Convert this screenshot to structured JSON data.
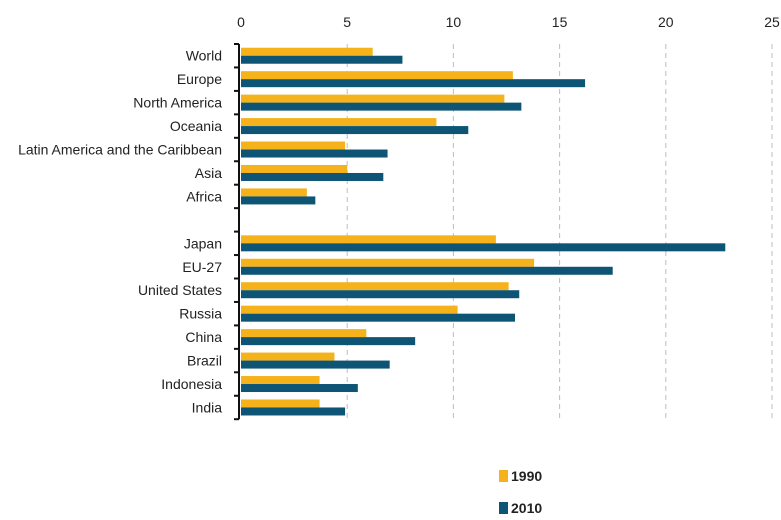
{
  "chart_data": {
    "type": "bar",
    "orientation": "horizontal",
    "categories": [
      "World",
      "Europe",
      "North America",
      "Oceania",
      "Latin America and the Caribbean",
      "Asia",
      "Africa",
      "",
      "Japan",
      "EU-27",
      "United States",
      "Russia",
      "China",
      "Brazil",
      "Indonesia",
      "India"
    ],
    "series": [
      {
        "name": "1990",
        "color": "#F5B21B",
        "values": [
          6.2,
          12.8,
          12.4,
          9.2,
          4.9,
          5.0,
          3.1,
          null,
          12.0,
          13.8,
          12.6,
          10.2,
          5.9,
          4.4,
          3.7,
          3.7
        ]
      },
      {
        "name": "2010",
        "color": "#0E5474",
        "values": [
          7.6,
          16.2,
          13.2,
          10.7,
          6.9,
          6.7,
          3.5,
          null,
          22.8,
          17.5,
          13.1,
          12.9,
          8.2,
          7.0,
          5.5,
          4.9
        ]
      }
    ],
    "xlim": [
      0,
      25
    ],
    "xticks": [
      "0",
      "5",
      "10",
      "15",
      "20",
      "25"
    ],
    "grid": true,
    "legend": "bottom-right"
  }
}
